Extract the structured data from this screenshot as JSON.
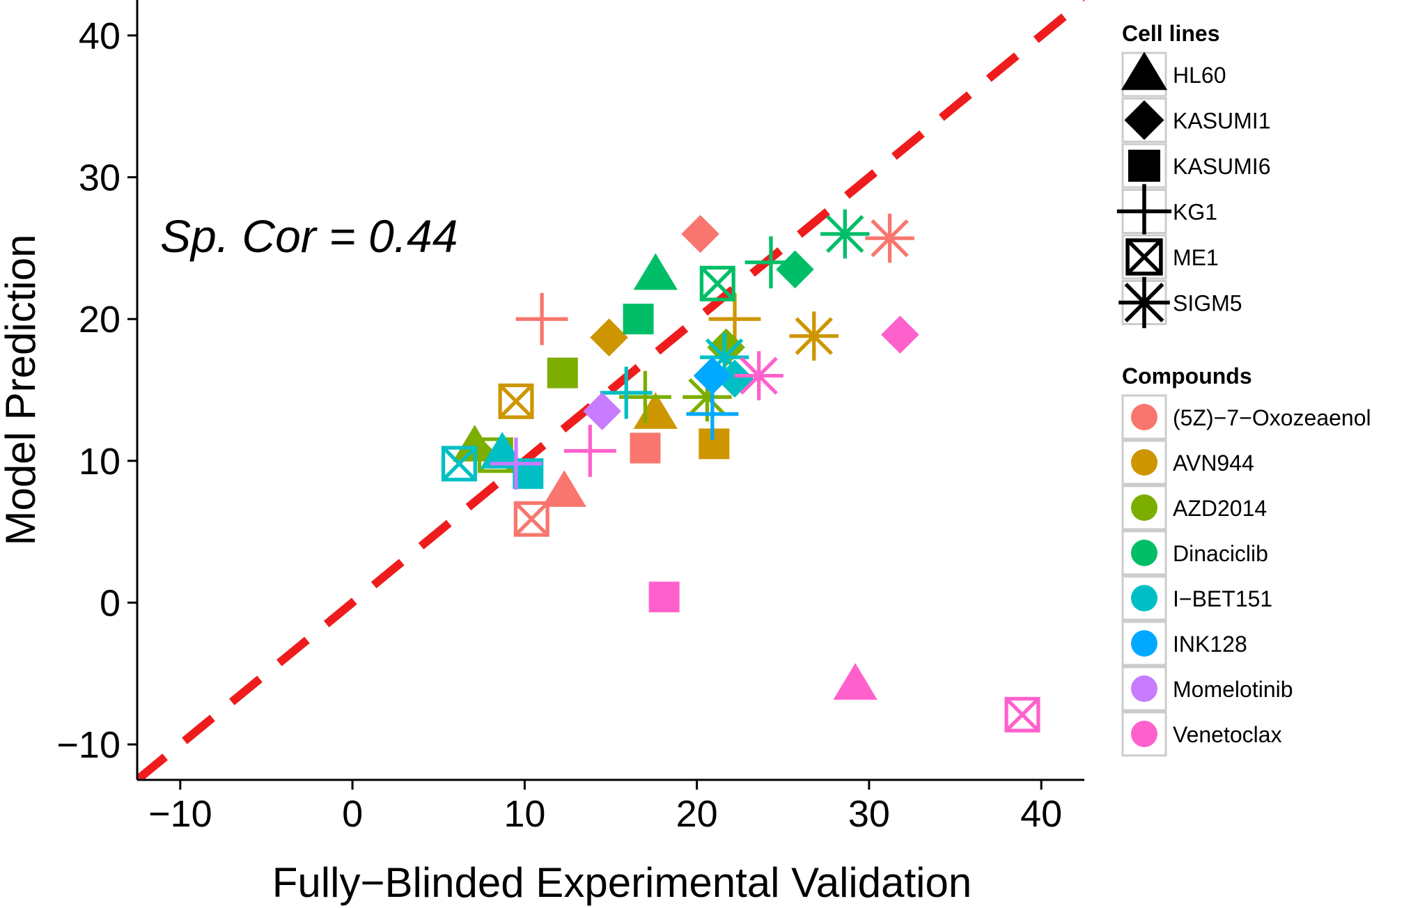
{
  "chart_data": {
    "type": "scatter",
    "title": "",
    "xlabel": "Fully−Blinded Experimental Validation",
    "ylabel": "Model Prediction",
    "xlim": [
      -12.5,
      42.5
    ],
    "ylim": [
      -12.5,
      42.5
    ],
    "xticks": [
      -10,
      0,
      10,
      20,
      30,
      40
    ],
    "yticks": [
      -10,
      0,
      10,
      20,
      30,
      40
    ],
    "xtick_labels": [
      "−10",
      "0",
      "10",
      "20",
      "30",
      "40"
    ],
    "ytick_labels": [
      "−10",
      "0",
      "10",
      "20",
      "30",
      "40"
    ],
    "grid": false,
    "annotation": "Sp. Cor = 0.44",
    "reference_line": {
      "type": "identity",
      "color": "#ee1c1c",
      "style": "dashed"
    },
    "legend_placement": "right",
    "shape_legend": {
      "title": "Cell lines",
      "entries": [
        {
          "label": "HL60",
          "shape": "triangle"
        },
        {
          "label": "KASUMI1",
          "shape": "diamond"
        },
        {
          "label": "KASUMI6",
          "shape": "square"
        },
        {
          "label": "KG1",
          "shape": "plus"
        },
        {
          "label": "ME1",
          "shape": "boxx"
        },
        {
          "label": "SIGM5",
          "shape": "star"
        }
      ]
    },
    "color_legend": {
      "title": "Compounds",
      "entries": [
        {
          "label": "(5Z)−7−Oxozeaenol",
          "color": "#f8766d"
        },
        {
          "label": "AVN944",
          "color": "#cd9600"
        },
        {
          "label": "AZD2014",
          "color": "#7cae00"
        },
        {
          "label": "Dinaciclib",
          "color": "#00be67"
        },
        {
          "label": "I−BET151",
          "color": "#00bfc4"
        },
        {
          "label": "INK128",
          "color": "#00a9ff"
        },
        {
          "label": "Momelotinib",
          "color": "#c77cff"
        },
        {
          "label": "Venetoclax",
          "color": "#ff61cc"
        }
      ]
    },
    "points": [
      {
        "compound": "(5Z)−7−Oxozeaenol",
        "cell": "KASUMI1",
        "x": 20.2,
        "y": 26.0
      },
      {
        "compound": "(5Z)−7−Oxozeaenol",
        "cell": "SIGM5",
        "x": 31.2,
        "y": 25.7
      },
      {
        "compound": "(5Z)−7−Oxozeaenol",
        "cell": "KG1",
        "x": 11.0,
        "y": 20.0
      },
      {
        "compound": "(5Z)−7−Oxozeaenol",
        "cell": "KASUMI6",
        "x": 17.0,
        "y": 10.9
      },
      {
        "compound": "(5Z)−7−Oxozeaenol",
        "cell": "HL60",
        "x": 12.3,
        "y": 7.8
      },
      {
        "compound": "(5Z)−7−Oxozeaenol",
        "cell": "ME1",
        "x": 10.4,
        "y": 5.9
      },
      {
        "compound": "AVN944",
        "cell": "KASUMI1",
        "x": 14.9,
        "y": 18.7
      },
      {
        "compound": "AVN944",
        "cell": "KG1",
        "x": 22.2,
        "y": 20.0
      },
      {
        "compound": "AVN944",
        "cell": "SIGM5",
        "x": 26.8,
        "y": 18.8
      },
      {
        "compound": "AVN944",
        "cell": "ME1",
        "x": 9.5,
        "y": 14.2
      },
      {
        "compound": "AVN944",
        "cell": "HL60",
        "x": 17.6,
        "y": 13.3
      },
      {
        "compound": "AVN944",
        "cell": "KASUMI6",
        "x": 21.0,
        "y": 11.2
      },
      {
        "compound": "AZD2014",
        "cell": "KASUMI6",
        "x": 12.2,
        "y": 16.2
      },
      {
        "compound": "AZD2014",
        "cell": "KG1",
        "x": 17.0,
        "y": 14.5
      },
      {
        "compound": "AZD2014",
        "cell": "SIGM5",
        "x": 20.6,
        "y": 14.5
      },
      {
        "compound": "AZD2014",
        "cell": "KASUMI1",
        "x": 21.7,
        "y": 18.0
      },
      {
        "compound": "AZD2014",
        "cell": "HL60",
        "x": 7.1,
        "y": 11.0
      },
      {
        "compound": "AZD2014",
        "cell": "ME1",
        "x": 8.3,
        "y": 10.4
      },
      {
        "compound": "Dinaciclib",
        "cell": "HL60",
        "x": 17.6,
        "y": 23.1
      },
      {
        "compound": "Dinaciclib",
        "cell": "KASUMI6",
        "x": 16.6,
        "y": 20.0
      },
      {
        "compound": "Dinaciclib",
        "cell": "ME1",
        "x": 21.2,
        "y": 22.5
      },
      {
        "compound": "Dinaciclib",
        "cell": "KG1",
        "x": 24.3,
        "y": 24.0
      },
      {
        "compound": "Dinaciclib",
        "cell": "KASUMI1",
        "x": 25.7,
        "y": 23.5
      },
      {
        "compound": "Dinaciclib",
        "cell": "SIGM5",
        "x": 28.6,
        "y": 26.0
      },
      {
        "compound": "I−BET151",
        "cell": "ME1",
        "x": 6.2,
        "y": 9.8
      },
      {
        "compound": "I−BET151",
        "cell": "HL60",
        "x": 8.7,
        "y": 10.5
      },
      {
        "compound": "I−BET151",
        "cell": "KASUMI6",
        "x": 10.2,
        "y": 9.1
      },
      {
        "compound": "I−BET151",
        "cell": "KG1",
        "x": 15.9,
        "y": 14.8
      },
      {
        "compound": "I−BET151",
        "cell": "SIGM5",
        "x": 21.6,
        "y": 17.3
      },
      {
        "compound": "I−BET151",
        "cell": "KASUMI1",
        "x": 22.2,
        "y": 15.8
      },
      {
        "compound": "INK128",
        "cell": "KG1",
        "x": 20.9,
        "y": 13.3
      },
      {
        "compound": "INK128",
        "cell": "KASUMI1",
        "x": 20.9,
        "y": 16.0
      },
      {
        "compound": "Momelotinib",
        "cell": "KASUMI1",
        "x": 14.5,
        "y": 13.5
      },
      {
        "compound": "Momelotinib",
        "cell": "KG1",
        "x": 9.5,
        "y": 9.8
      },
      {
        "compound": "Venetoclax",
        "cell": "KG1",
        "x": 13.8,
        "y": 10.7
      },
      {
        "compound": "Venetoclax",
        "cell": "SIGM5",
        "x": 23.6,
        "y": 16.0
      },
      {
        "compound": "Venetoclax",
        "cell": "KASUMI1",
        "x": 31.8,
        "y": 18.9
      },
      {
        "compound": "Venetoclax",
        "cell": "KASUMI6",
        "x": 18.1,
        "y": 0.4
      },
      {
        "compound": "Venetoclax",
        "cell": "HL60",
        "x": 29.2,
        "y": -5.8
      },
      {
        "compound": "Venetoclax",
        "cell": "ME1",
        "x": 38.9,
        "y": -7.9
      }
    ]
  }
}
